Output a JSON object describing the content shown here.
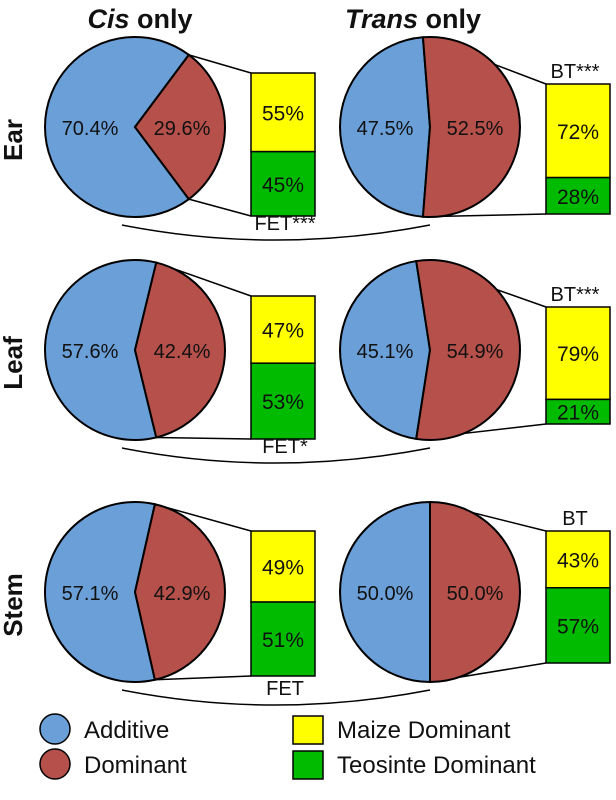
{
  "column_titles": [
    {
      "emph": "Cis",
      "rest": " only"
    },
    {
      "emph": "Trans",
      "rest": " only"
    }
  ],
  "tissues": [
    "Ear",
    "Leaf",
    "Stem"
  ],
  "colors": {
    "additive": "#6a9fd8",
    "dominant": "#b5504a",
    "maize": "#ffff00",
    "teosinte": "#00bb00"
  },
  "legend": [
    {
      "label": "Additive",
      "color_key": "additive"
    },
    {
      "label": "Dominant",
      "color_key": "dominant"
    },
    {
      "label": "Maize Dominant",
      "color_key": "maize"
    },
    {
      "label": "Teosinte Dominant",
      "color_key": "teosinte"
    }
  ],
  "chart_data": [
    {
      "type": "pie",
      "tissue": "Ear",
      "group": "Cis only",
      "slices": [
        {
          "label": "Additive",
          "value": 70.4,
          "text": "70.4%"
        },
        {
          "label": "Dominant",
          "value": 29.6,
          "text": "29.6%"
        }
      ],
      "breakdown": [
        {
          "label": "Maize Dominant",
          "value": 55,
          "text": "55%"
        },
        {
          "label": "Teosinte Dominant",
          "value": 45,
          "text": "45%"
        }
      ],
      "test": ""
    },
    {
      "type": "pie",
      "tissue": "Ear",
      "group": "Trans only",
      "slices": [
        {
          "label": "Additive",
          "value": 47.5,
          "text": "47.5%"
        },
        {
          "label": "Dominant",
          "value": 52.5,
          "text": "52.5%"
        }
      ],
      "breakdown": [
        {
          "label": "Maize Dominant",
          "value": 72,
          "text": "72%"
        },
        {
          "label": "Teosinte Dominant",
          "value": 28,
          "text": "28%"
        }
      ],
      "test": "BT***"
    },
    {
      "type": "pie",
      "tissue": "Leaf",
      "group": "Cis only",
      "slices": [
        {
          "label": "Additive",
          "value": 57.6,
          "text": "57.6%"
        },
        {
          "label": "Dominant",
          "value": 42.4,
          "text": "42.4%"
        }
      ],
      "breakdown": [
        {
          "label": "Maize Dominant",
          "value": 47,
          "text": "47%"
        },
        {
          "label": "Teosinte Dominant",
          "value": 53,
          "text": "53%"
        }
      ],
      "test": ""
    },
    {
      "type": "pie",
      "tissue": "Leaf",
      "group": "Trans only",
      "slices": [
        {
          "label": "Additive",
          "value": 45.1,
          "text": "45.1%"
        },
        {
          "label": "Dominant",
          "value": 54.9,
          "text": "54.9%"
        }
      ],
      "breakdown": [
        {
          "label": "Maize Dominant",
          "value": 79,
          "text": "79%"
        },
        {
          "label": "Teosinte Dominant",
          "value": 21,
          "text": "21%"
        }
      ],
      "test": "BT***"
    },
    {
      "type": "pie",
      "tissue": "Stem",
      "group": "Cis only",
      "slices": [
        {
          "label": "Additive",
          "value": 57.1,
          "text": "57.1%"
        },
        {
          "label": "Dominant",
          "value": 42.9,
          "text": "42.9%"
        }
      ],
      "breakdown": [
        {
          "label": "Maize Dominant",
          "value": 49,
          "text": "49%"
        },
        {
          "label": "Teosinte Dominant",
          "value": 51,
          "text": "51%"
        }
      ],
      "test": ""
    },
    {
      "type": "pie",
      "tissue": "Stem",
      "group": "Trans only",
      "slices": [
        {
          "label": "Additive",
          "value": 50.0,
          "text": "50.0%"
        },
        {
          "label": "Dominant",
          "value": 50.0,
          "text": "50.0%"
        }
      ],
      "breakdown": [
        {
          "label": "Maize Dominant",
          "value": 43,
          "text": "43%"
        },
        {
          "label": "Teosinte Dominant",
          "value": 57,
          "text": "57%"
        }
      ],
      "test": "BT"
    }
  ],
  "comparisons": [
    {
      "tissue": "Ear",
      "label": "FET***"
    },
    {
      "tissue": "Leaf",
      "label": "FET*"
    },
    {
      "tissue": "Stem",
      "label": "FET"
    }
  ]
}
